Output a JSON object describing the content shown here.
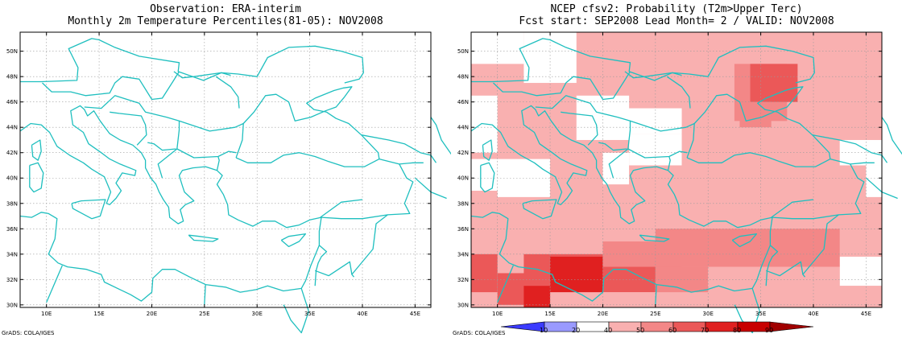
{
  "left_panel": {
    "title_line1": "Observation: ERA-interim",
    "title_line2": "Monthly 2m Temperature Percentiles(81-05): NOV2008"
  },
  "right_panel": {
    "title_line1": "NCEP cfsv2: Probability (T2m>Upper Terc)",
    "title_line2": "Fcst start: SEP2008  Lead Month= 2 / VALID: NOV2008"
  },
  "lat_labels": [
    "50N",
    "48N",
    "46N",
    "44N",
    "42N",
    "40N",
    "38N",
    "36N",
    "34N",
    "32N",
    "30N"
  ],
  "lon_labels": [
    "10E",
    "15E",
    "20E",
    "25E",
    "30E",
    "35E",
    "40E",
    "45E"
  ],
  "footer_left": "GrADS: COLA/IGES",
  "footer_right": "GrADS: COLA/IGES",
  "colorbar": {
    "labels": [
      "10",
      "20",
      "40",
      "50",
      "60",
      "70",
      "80",
      "90"
    ],
    "colors": [
      "#3b3bff",
      "#9a9aff",
      "#ffffff",
      "#f9b0b0",
      "#f38787",
      "#eb5858",
      "#e02020",
      "#c80000",
      "#a00000"
    ]
  },
  "probability_colors": {
    "light": "#f9b0b0",
    "medium": "#f38787",
    "dark": "#eb5858",
    "strong": "#e02020",
    "none": "#ffffff"
  },
  "coast_color": "#1fbfbf"
}
